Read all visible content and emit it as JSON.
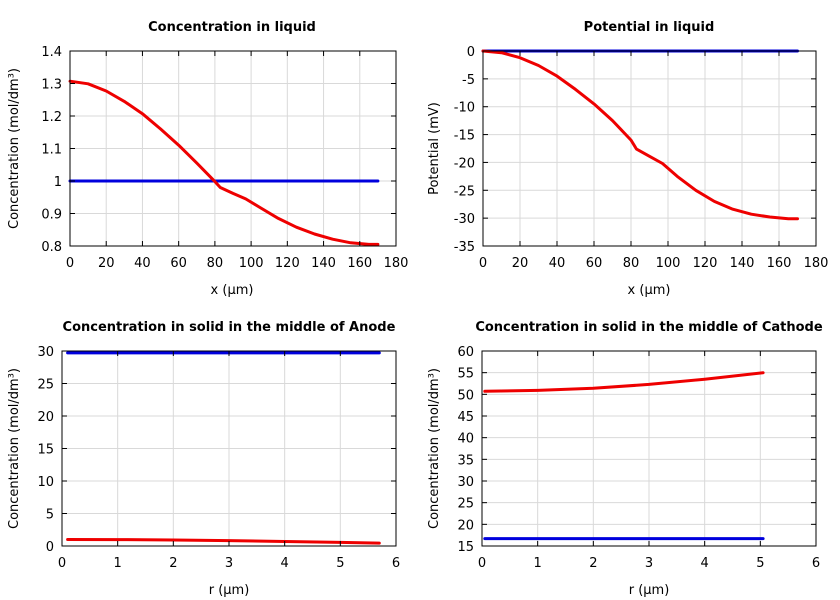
{
  "chart_data": [
    {
      "type": "line",
      "title": "Concentration in liquid",
      "xlabel": "x (µm)",
      "ylabel": "Concentration (mol/dm³)",
      "xlim": [
        0,
        180
      ],
      "ylim": [
        0.8,
        1.4
      ],
      "xticks": [
        0,
        20,
        40,
        60,
        80,
        100,
        120,
        140,
        160,
        180
      ],
      "yticks": [
        0.8,
        0.9,
        1,
        1.1,
        1.2,
        1.3,
        1.4
      ],
      "grid": true,
      "series": [
        {
          "color": "#0000dd",
          "x": [
            0,
            170
          ],
          "y": [
            1.0,
            1.0
          ]
        },
        {
          "color": "#ee0000",
          "x": [
            0,
            10,
            20,
            30,
            40,
            50,
            60,
            70,
            80,
            83,
            90,
            97,
            105,
            115,
            125,
            135,
            145,
            155,
            165,
            170
          ],
          "y": [
            1.307,
            1.299,
            1.277,
            1.245,
            1.207,
            1.16,
            1.11,
            1.055,
            0.998,
            0.98,
            0.962,
            0.945,
            0.918,
            0.885,
            0.858,
            0.837,
            0.821,
            0.81,
            0.805,
            0.805
          ]
        }
      ]
    },
    {
      "type": "line",
      "title": "Potential in liquid",
      "xlabel": "x (µm)",
      "ylabel": "Potential (mV)",
      "xlim": [
        0,
        180
      ],
      "ylim": [
        -35,
        0
      ],
      "xticks": [
        0,
        20,
        40,
        60,
        80,
        100,
        120,
        140,
        160,
        180
      ],
      "yticks": [
        -35,
        -30,
        -25,
        -20,
        -15,
        -10,
        -5,
        0
      ],
      "grid": true,
      "series": [
        {
          "color": "#0000dd",
          "x": [
            0,
            170
          ],
          "y": [
            0,
            0
          ]
        },
        {
          "color": "#ee0000",
          "x": [
            0,
            10,
            20,
            30,
            40,
            50,
            60,
            70,
            80,
            83,
            90,
            97,
            105,
            115,
            125,
            135,
            145,
            155,
            165,
            170
          ],
          "y": [
            0,
            -0.3,
            -1.2,
            -2.6,
            -4.5,
            -6.9,
            -9.5,
            -12.5,
            -16.0,
            -17.6,
            -18.9,
            -20.2,
            -22.5,
            -25.0,
            -27.0,
            -28.4,
            -29.3,
            -29.8,
            -30.1,
            -30.1
          ]
        }
      ]
    },
    {
      "type": "line",
      "title": "Concentration in solid in the middle of Anode",
      "xlabel": "r (µm)",
      "ylabel": "Concentration (mol/dm³)",
      "xlim": [
        0,
        6
      ],
      "ylim": [
        0,
        30
      ],
      "xticks": [
        0,
        1,
        2,
        3,
        4,
        5,
        6
      ],
      "yticks": [
        0,
        5,
        10,
        15,
        20,
        25,
        30
      ],
      "grid": true,
      "series": [
        {
          "color": "#0000dd",
          "x": [
            0.1,
            5.7
          ],
          "y": [
            29.7,
            29.7
          ]
        },
        {
          "color": "#ee0000",
          "x": [
            0.1,
            1,
            2,
            3,
            4,
            5,
            5.7
          ],
          "y": [
            1.0,
            0.98,
            0.92,
            0.83,
            0.7,
            0.56,
            0.45
          ]
        }
      ]
    },
    {
      "type": "line",
      "title": "Concentration in solid in the middle of Cathode",
      "xlabel": "r (µm)",
      "ylabel": "Concentration (mol/dm³)",
      "xlim": [
        0,
        6
      ],
      "ylim": [
        15,
        60
      ],
      "xticks": [
        0,
        1,
        2,
        3,
        4,
        5,
        6
      ],
      "yticks": [
        15,
        20,
        25,
        30,
        35,
        40,
        45,
        50,
        55,
        60
      ],
      "grid": true,
      "series": [
        {
          "color": "#0000dd",
          "x": [
            0.05,
            5.05
          ],
          "y": [
            16.7,
            16.7
          ]
        },
        {
          "color": "#ee0000",
          "x": [
            0.05,
            1,
            2,
            3,
            4,
            5.05
          ],
          "y": [
            50.7,
            50.9,
            51.4,
            52.3,
            53.5,
            55.0
          ]
        }
      ]
    }
  ]
}
